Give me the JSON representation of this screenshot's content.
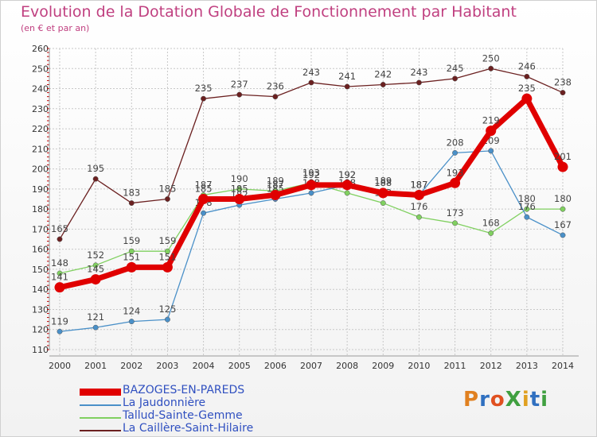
{
  "header": {
    "title": "Evolution de la Dotation Globale de Fonctionnement par Habitant",
    "subtitle": "(en € et par an)"
  },
  "logo": {
    "text": "ProXiti",
    "colors": [
      "#e08020",
      "#3070c0",
      "#e05020",
      "#40a040",
      "#e0a020",
      "#3070c0",
      "#40a040"
    ]
  },
  "chart_data": {
    "type": "line",
    "title": "Evolution de la Dotation Globale de Fonctionnement par Habitant",
    "subtitle": "(en € et par an)",
    "xlabel": "",
    "ylabel": "",
    "ylim": [
      110,
      260
    ],
    "yticks": [
      110,
      120,
      130,
      140,
      150,
      160,
      170,
      180,
      190,
      200,
      210,
      220,
      230,
      240,
      250,
      260
    ],
    "categories": [
      "2000",
      "2001",
      "2002",
      "2003",
      "2004",
      "2005",
      "2006",
      "2007",
      "2008",
      "2009",
      "2010",
      "2011",
      "2012",
      "2013",
      "2014"
    ],
    "grid": true,
    "series": [
      {
        "name": "La Caillère-Saint-Hilaire",
        "color": "#6b2020",
        "emphasis": false,
        "values": [
          165,
          195,
          183,
          185,
          235,
          237,
          236,
          243,
          241,
          242,
          243,
          245,
          250,
          246,
          238
        ]
      },
      {
        "name": "Tallud-Sainte-Gemme",
        "color": "#80d060",
        "emphasis": false,
        "values": [
          148,
          152,
          159,
          159,
          187,
          190,
          189,
          193,
          188,
          183,
          176,
          173,
          168,
          180,
          180
        ]
      },
      {
        "name": "La Jaudonnière",
        "color": "#4a90c8",
        "emphasis": false,
        "values": [
          119,
          121,
          124,
          125,
          178,
          182,
          185,
          188,
          192,
          189,
          187,
          208,
          209,
          176,
          167
        ]
      },
      {
        "name": "BAZOGES-EN-PAREDS",
        "color": "#e00000",
        "emphasis": true,
        "values": [
          141,
          145,
          151,
          151,
          185,
          185,
          187,
          192,
          192,
          188,
          187,
          193,
          219,
          235,
          201
        ]
      }
    ],
    "legend": {
      "position": "bottom-left",
      "order": [
        "BAZOGES-EN-PAREDS",
        "La Jaudonnière",
        "Tallud-Sainte-Gemme",
        "La Caillère-Saint-Hilaire"
      ]
    }
  }
}
